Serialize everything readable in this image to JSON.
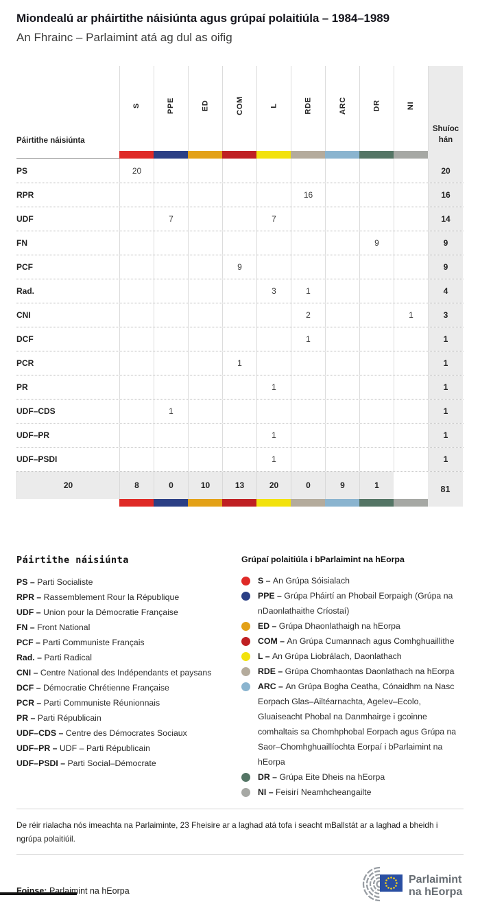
{
  "header": {
    "title": "Miondealú ar pháirtithe náisiúnta agus grúpaí polaitiúla – 1984–1989",
    "subtitle": "An Fhrainc – Parlaimint atá ag dul as oifig"
  },
  "table": {
    "name_header": "Páirtithe náisiúnta",
    "seats_header": "Shuíochán"
  },
  "chart_data": {
    "type": "table",
    "title": "Miondealú ar pháirtithe náisiúnta agus grúpaí polaitiúla – 1984–1989",
    "subtitle": "An Fhrainc – Parlaimint atá ag dul as oifig",
    "columns": [
      {
        "code": "S",
        "color": "#df2a27"
      },
      {
        "code": "PPE",
        "color": "#2b3f85"
      },
      {
        "code": "ED",
        "color": "#e3a117"
      },
      {
        "code": "COM",
        "color": "#bf2023"
      },
      {
        "code": "L",
        "color": "#f2e20d"
      },
      {
        "code": "RDE",
        "color": "#b4ab9c"
      },
      {
        "code": "ARC",
        "color": "#8ab4cf"
      },
      {
        "code": "DR",
        "color": "#547565"
      },
      {
        "code": "NI",
        "color": "#a6a8a4"
      }
    ],
    "rows": [
      {
        "party": "PS",
        "values": [
          20,
          null,
          null,
          null,
          null,
          null,
          null,
          null,
          null
        ],
        "seats": 20
      },
      {
        "party": "RPR",
        "values": [
          null,
          null,
          null,
          null,
          null,
          16,
          null,
          null,
          null
        ],
        "seats": 16
      },
      {
        "party": "UDF",
        "values": [
          null,
          7,
          null,
          null,
          7,
          null,
          null,
          null,
          null
        ],
        "seats": 14
      },
      {
        "party": "FN",
        "values": [
          null,
          null,
          null,
          null,
          null,
          null,
          null,
          9,
          null
        ],
        "seats": 9
      },
      {
        "party": "PCF",
        "values": [
          null,
          null,
          null,
          9,
          null,
          null,
          null,
          null,
          null
        ],
        "seats": 9
      },
      {
        "party": "Rad.",
        "values": [
          null,
          null,
          null,
          null,
          3,
          1,
          null,
          null,
          null
        ],
        "seats": 4
      },
      {
        "party": "CNI",
        "values": [
          null,
          null,
          null,
          null,
          null,
          2,
          null,
          null,
          1
        ],
        "seats": 3
      },
      {
        "party": "DCF",
        "values": [
          null,
          null,
          null,
          null,
          null,
          1,
          null,
          null,
          null
        ],
        "seats": 1
      },
      {
        "party": "PCR",
        "values": [
          null,
          null,
          null,
          1,
          null,
          null,
          null,
          null,
          null
        ],
        "seats": 1
      },
      {
        "party": "PR",
        "values": [
          null,
          null,
          null,
          null,
          1,
          null,
          null,
          null,
          null
        ],
        "seats": 1
      },
      {
        "party": "UDF–CDS",
        "values": [
          null,
          1,
          null,
          null,
          null,
          null,
          null,
          null,
          null
        ],
        "seats": 1
      },
      {
        "party": "UDF–PR",
        "values": [
          null,
          null,
          null,
          null,
          1,
          null,
          null,
          null,
          null
        ],
        "seats": 1
      },
      {
        "party": "UDF–PSDI",
        "values": [
          null,
          null,
          null,
          null,
          1,
          null,
          null,
          null,
          null
        ],
        "seats": 1
      }
    ],
    "totals": {
      "values": [
        20,
        8,
        0,
        10,
        13,
        20,
        0,
        9,
        1
      ],
      "seats": 81
    }
  },
  "legend_parties": {
    "title": "Páirtithe náisiúnta",
    "items": [
      {
        "term": "PS –",
        "desc": "Parti Socialiste"
      },
      {
        "term": "RPR –",
        "desc": "Rassemblement Rour la République"
      },
      {
        "term": "UDF –",
        "desc": "Union pour la Démocratie Française"
      },
      {
        "term": "FN –",
        "desc": "Front National"
      },
      {
        "term": "PCF –",
        "desc": "Parti Communiste Français"
      },
      {
        "term": "Rad. –",
        "desc": "Parti Radical"
      },
      {
        "term": "CNI –",
        "desc": "Centre National des Indépendants et paysans"
      },
      {
        "term": "DCF –",
        "desc": "Démocratie Chrétienne Française"
      },
      {
        "term": "PCR –",
        "desc": "Parti Communiste Réunionnais"
      },
      {
        "term": "PR –",
        "desc": "Parti Républicain"
      },
      {
        "term": "UDF–CDS –",
        "desc": "Centre des Démocrates Sociaux"
      },
      {
        "term": "UDF–PR –",
        "desc": "UDF – Parti Républicain"
      },
      {
        "term": "UDF–PSDI –",
        "desc": "Parti Social–Démocrate"
      }
    ]
  },
  "legend_groups": {
    "title": "Grúpaí polaitiúla i bParlaimint na hEorpa",
    "items": [
      {
        "term": "S –",
        "color": "#df2a27",
        "desc": "An Grúpa Sóisialach"
      },
      {
        "term": "PPE –",
        "color": "#2b3f85",
        "desc": "Grúpa Pháirtí an Phobail Eorpaigh (Grúpa na nDaonlathaithe Críostaí)"
      },
      {
        "term": "ED –",
        "color": "#e3a117",
        "desc": "Grúpa Dhaonlathaigh na hEorpa"
      },
      {
        "term": "COM –",
        "color": "#bf2023",
        "desc": "An Grúpa Cumannach agus Comhghuaillithe"
      },
      {
        "term": "L –",
        "color": "#f2e20d",
        "desc": "An Grúpa Liobrálach, Daonlathach"
      },
      {
        "term": "RDE –",
        "color": "#b4ab9c",
        "desc": "Grúpa Chomhaontas Daonlathach na hEorpa"
      },
      {
        "term": "ARC –",
        "color": "#8ab4cf",
        "desc": "An Grúpa Bogha Ceatha, Cónaidhm na Nasc Eorpach Glas–Ailtéarnachta, Agelev–Ecolo, Gluaiseacht Phobal na Danmhairge i gcoinne comhaltais sa Chomhphobal Eorpach agus Grúpa na Saor–Chomhghuaillíochta Eorpaí i bParlaimint na hEorpa"
      },
      {
        "term": "DR –",
        "color": "#547565",
        "desc": "Grúpa Eite Dheis na hEorpa"
      },
      {
        "term": "NI –",
        "color": "#a6a8a4",
        "desc": "Feisirí Neamhcheangailte"
      }
    ]
  },
  "footer": {
    "note": "De réir rialacha nós imeachta na Parlaiminte, 23 Fheisire ar a laghad atá tofa i seacht mBallstát ar a laghad a bheidh i ngrúpa polaitiúil.",
    "source_label": "Foinse:",
    "source": "Parlaimint na hEorpa",
    "logo_line1": "Parlaimint",
    "logo_line2": "na hEorpa"
  }
}
